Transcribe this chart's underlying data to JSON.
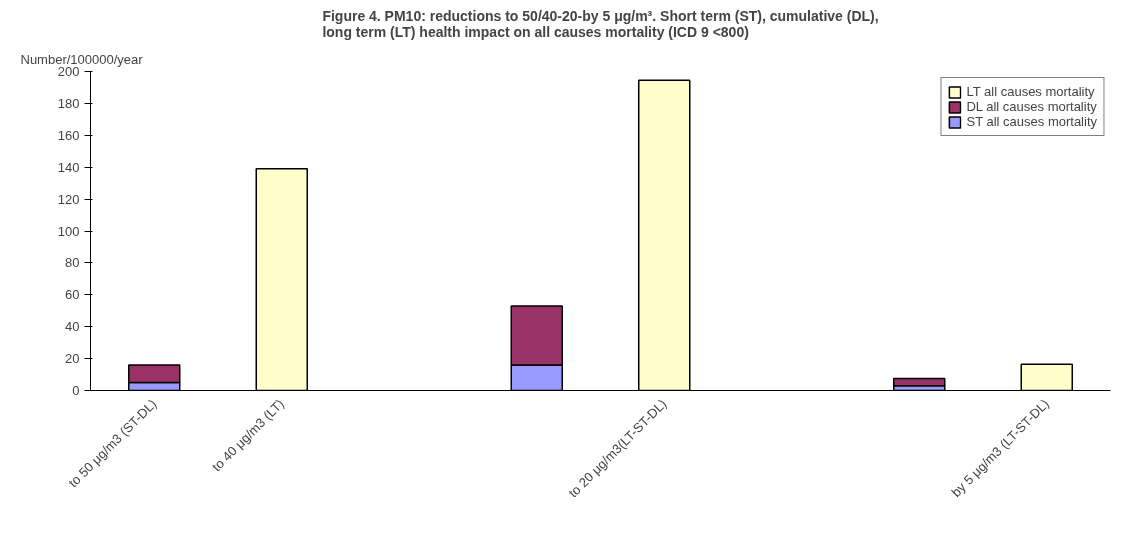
{
  "chart_data": {
    "type": "bar",
    "title": "Figure 4. PM10: reductions to 50/40-20-by 5 μg/m³. Short term (ST), cumulative (DL), long term (LT) health impact on all causes mortality (ICD 9 <800)",
    "ylabel": "Number/100000/year",
    "categories": [
      "to 50 μg/m3 (ST-DL)",
      "to 40 μg/m3 (LT)",
      null,
      null,
      "to 20 μg/m3(LT-ST-DL)",
      null,
      null,
      "by 5 μg/m3 (LT-ST-DL)"
    ],
    "stacked": true,
    "series": [
      {
        "name": "ST all causes mortality",
        "color": "#9999ff",
        "values": [
          5,
          null,
          null,
          16,
          null,
          null,
          3,
          null
        ]
      },
      {
        "name": "DL all causes mortality",
        "color": "#993366",
        "values": [
          11,
          null,
          null,
          37,
          null,
          null,
          4.5,
          null
        ]
      },
      {
        "name": "LT all causes mortality",
        "color": "#ffffcc",
        "values": [
          null,
          139,
          null,
          null,
          194.5,
          null,
          null,
          16.5
        ]
      }
    ],
    "ylim": [
      0,
      200
    ],
    "yticks": [
      0,
      20,
      40,
      60,
      80,
      100,
      120,
      140,
      160,
      180,
      200
    ],
    "grid": false,
    "legend": "top right"
  }
}
